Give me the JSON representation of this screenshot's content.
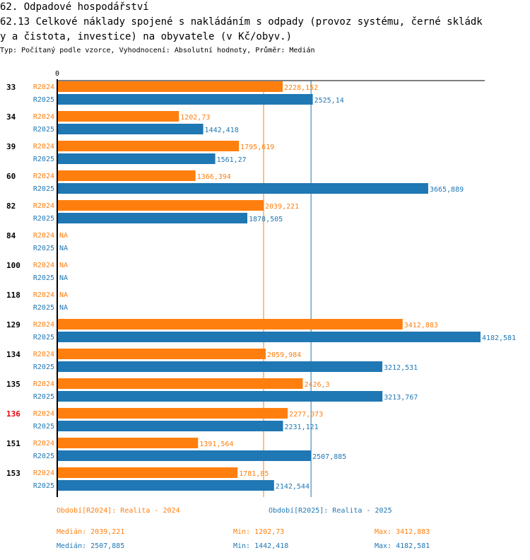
{
  "header": {
    "section_title": "62. Odpadové hospodářství",
    "chart_title_line1": "62.13 Celkové náklady spojené s nakládáním s odpady (provoz systému, černé skládk",
    "chart_title_line2": "y a čistota, investice) na obyvatele (v Kč/obyv.)",
    "subtitle": "Typ: Počítaný podle vzorce, Vyhodnocení: Absolutní hodnoty, Průměr: Medián"
  },
  "colors": {
    "R2024": "#ff7f0e",
    "R2025": "#1f77b4",
    "highlight": "#e8000b",
    "axis": "#000000"
  },
  "chart_data": {
    "type": "bar",
    "orientation": "horizontal",
    "title": "62.13 Celkové náklady spojené s nakládáním s odpady (provoz systému, černé skládky a čistota, investice) na obyvatele (v Kč/obyv.)",
    "xlabel": "",
    "ylabel": "",
    "x_tick_labels": [
      "0"
    ],
    "xlim": [
      0,
      4200
    ],
    "grid": false,
    "categories": [
      "33",
      "34",
      "39",
      "60",
      "82",
      "84",
      "100",
      "118",
      "129",
      "134",
      "135",
      "136",
      "151",
      "153"
    ],
    "highlighted_category": "136",
    "series": [
      {
        "name": "R2024",
        "label_values": [
          "2228,152",
          "1202,73",
          "1795,619",
          "1366,394",
          "2039,221",
          "NA",
          "NA",
          "NA",
          "3412,883",
          "2059,984",
          "2426,3",
          "2277,073",
          "1391,564",
          "1781,85"
        ],
        "values": [
          2228.152,
          1202.73,
          1795.619,
          1366.394,
          2039.221,
          null,
          null,
          null,
          3412.883,
          2059.984,
          2426.3,
          2277.073,
          1391.564,
          1781.85
        ]
      },
      {
        "name": "R2025",
        "label_values": [
          "2525,14",
          "1442,418",
          "1561,27",
          "3665,889",
          "1878,505",
          "NA",
          "NA",
          "NA",
          "4182,581",
          "3212,531",
          "3213,767",
          "2231,121",
          "2507,885",
          "2142,544"
        ],
        "values": [
          2525.14,
          1442.418,
          1561.27,
          3665.889,
          1878.505,
          null,
          null,
          null,
          4182.581,
          3212.531,
          3213.767,
          2231.121,
          2507.885,
          2142.544
        ]
      }
    ],
    "reference_lines": [
      {
        "series": "R2024",
        "type": "median",
        "value": 2039.221
      },
      {
        "series": "R2025",
        "type": "median",
        "value": 2507.885
      }
    ],
    "legend": [
      {
        "series": "R2024",
        "text": "Období[R2024]: Realita - 2024"
      },
      {
        "series": "R2025",
        "text": "Období[R2025]: Realita - 2025"
      }
    ],
    "legend_position": "bottom",
    "stats": {
      "R2024": {
        "median": "Medián: 2039,221",
        "min": "Min: 1202,73",
        "max": "Max: 3412,883"
      },
      "R2025": {
        "median": "Medián: 2507,885",
        "min": "Min: 1442,418",
        "max": "Max: 4182,581"
      }
    }
  }
}
